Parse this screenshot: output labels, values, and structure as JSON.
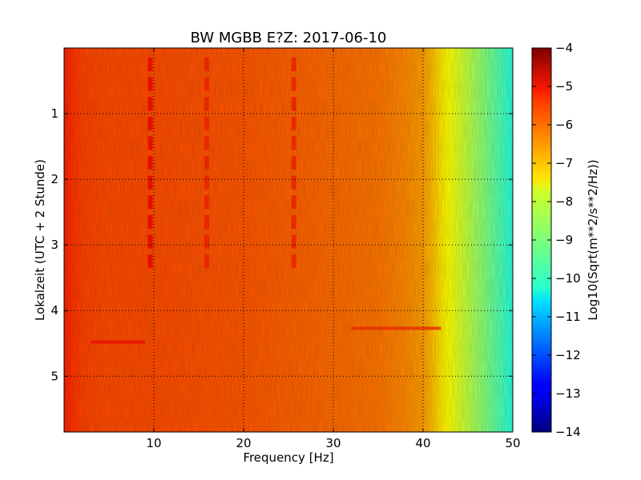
{
  "chart_data": {
    "type": "heatmap",
    "title": "BW MGBB E?Z: 2017-06-10",
    "xlabel": "Frequency [Hz]",
    "ylabel": "Lokalzeit (UTC + 2 Stunde)",
    "xlim": [
      0,
      50
    ],
    "ylim": [
      5.85,
      0
    ],
    "x_ticks": [
      10,
      20,
      30,
      40,
      50
    ],
    "y_ticks": [
      1,
      2,
      3,
      4,
      5
    ],
    "grid": true,
    "colorbar": {
      "label": "Log10(Sqrt(m**2/s**2/Hz))",
      "min": -14,
      "max": -4,
      "ticks": [
        -4,
        -5,
        -6,
        -7,
        -8,
        -9,
        -10,
        -11,
        -12,
        -13,
        -14
      ],
      "colormap": "jet"
    },
    "spectrum_profile": {
      "frequency_hz": [
        0,
        2,
        5,
        10,
        15,
        20,
        25,
        30,
        35,
        38,
        40,
        41,
        42,
        43,
        44,
        45,
        46,
        47,
        48,
        49,
        50
      ],
      "log10_amplitude": [
        -5.6,
        -5.9,
        -6.0,
        -6.0,
        -6.05,
        -6.1,
        -6.2,
        -6.3,
        -6.4,
        -6.6,
        -6.8,
        -7.1,
        -7.5,
        -7.8,
        -8.1,
        -8.4,
        -8.7,
        -9.0,
        -9.3,
        -9.6,
        -9.9
      ]
    },
    "features": [
      {
        "kind": "vertical-line",
        "frequency_hz": 9.6,
        "time_start": 0.1,
        "time_end": 3.4,
        "log10_amplitude": -5.3
      },
      {
        "kind": "vertical-line",
        "frequency_hz": 15.9,
        "time_start": 0.1,
        "time_end": 3.4,
        "log10_amplitude": -5.6
      },
      {
        "kind": "vertical-line",
        "frequency_hz": 25.6,
        "time_start": 0.1,
        "time_end": 3.4,
        "log10_amplitude": -5.6
      },
      {
        "kind": "horizontal-burst",
        "time": 4.48,
        "freq_start": 3,
        "freq_end": 9,
        "log10_amplitude": -5.4
      },
      {
        "kind": "horizontal-burst",
        "time": 4.27,
        "freq_start": 32,
        "freq_end": 42,
        "log10_amplitude": -5.7
      }
    ]
  }
}
